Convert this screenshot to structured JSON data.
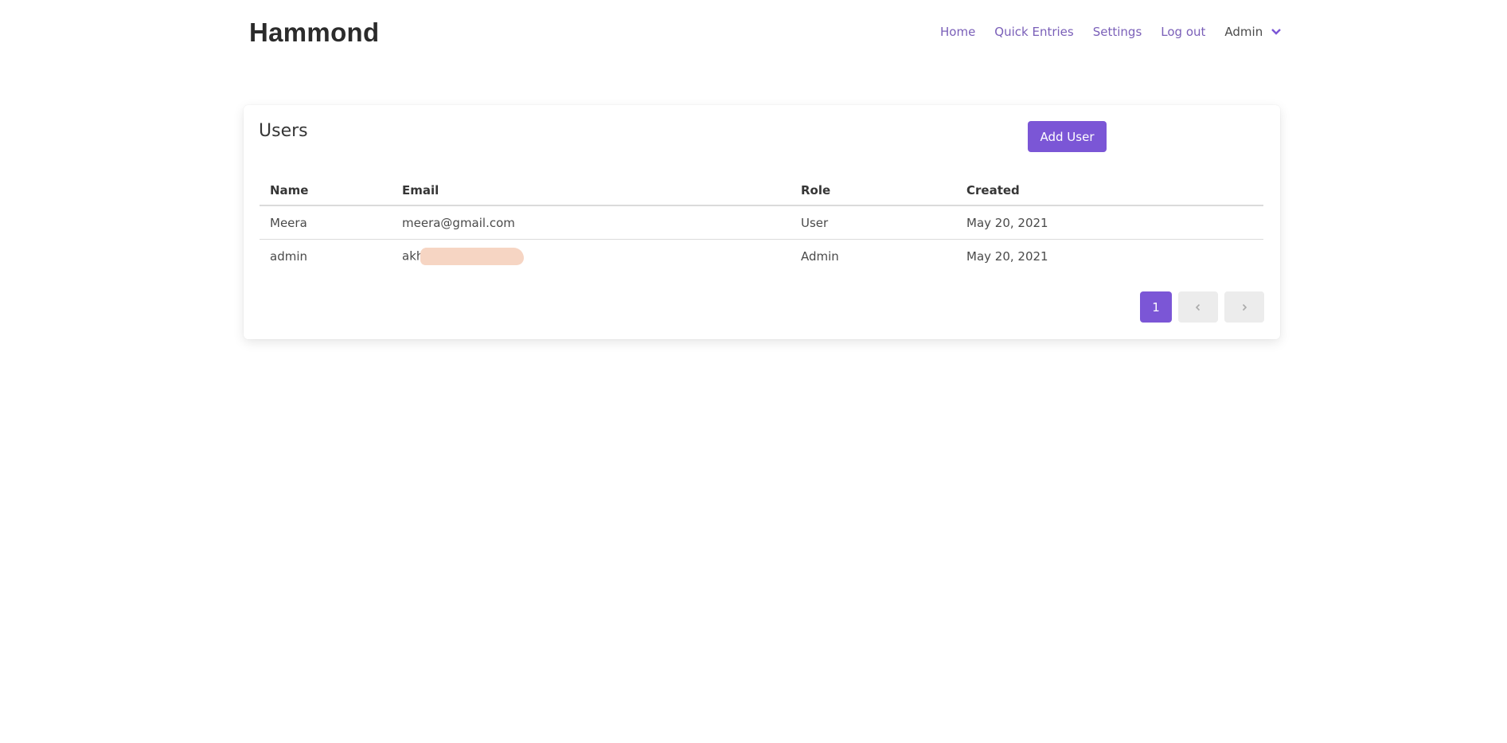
{
  "app": {
    "brand": "Hammond"
  },
  "nav": {
    "items": [
      "Home",
      "Quick Entries",
      "Settings",
      "Log out"
    ],
    "user_menu": "Admin"
  },
  "users": {
    "title": "Users",
    "add_button": "Add User",
    "columns": [
      "Name",
      "Email",
      "Role",
      "Created"
    ],
    "rows": [
      {
        "name": "Meera",
        "email": "meera@gmail.com",
        "role": "User",
        "created": "May 20, 2021"
      },
      {
        "name": "admin",
        "email": "akh",
        "role": "Admin",
        "created": "May 20, 2021"
      }
    ]
  },
  "pagination": {
    "current": "1",
    "prev_icon": "chevron-left-icon",
    "next_icon": "chevron-right-icon"
  },
  "colors": {
    "accent": "#7b56d6",
    "nav_link": "#7a5fb8",
    "redaction": "#f6d5c3"
  }
}
